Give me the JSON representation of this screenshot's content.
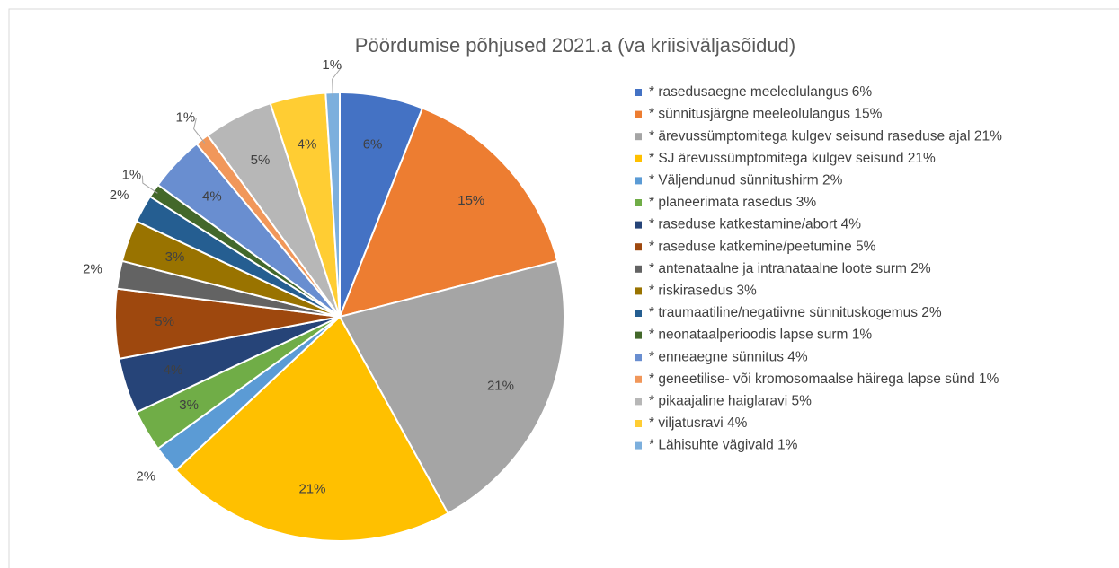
{
  "chart_data": {
    "type": "pie",
    "title": "Pöördumise põhjused 2021.a (va kriisiväljasõidud)",
    "categories": [
      "* rasedusaegne meeleolulangus 6%",
      "* sünnitusjärgne meeleolulangus 15%",
      "* ärevussümptomitega kulgev seisund raseduse ajal 21%",
      "* SJ ärevussümptomitega kulgev seisund 21%",
      "* Väljendunud sünnitushirm 2%",
      "* planeerimata rasedus 3%",
      "* raseduse katkestamine/abort 4%",
      "* raseduse katkemine/peetumine 5%",
      "* antenataalne ja intranataalne loote surm 2%",
      "* riskirasedus 3%",
      "* traumaatiline/negatiivne sünnituskogemus 2%",
      "* neonataalperioodis lapse surm 1%",
      "* enneaegne sünnitus 4%",
      "* geneetilise- või kromosomaalse häirega lapse sünd 1%",
      "* pikaajaline haiglaravi 5%",
      "* viljatusravi 4%",
      "* Lähisuhte vägivald 1%"
    ],
    "values": [
      6,
      15,
      21,
      21,
      2,
      3,
      4,
      5,
      2,
      3,
      2,
      1,
      4,
      1,
      5,
      4,
      1
    ],
    "value_labels": [
      "6%",
      "15%",
      "21%",
      "21%",
      "2%",
      "3%",
      "4%",
      "5%",
      "2%",
      "3%",
      "2%",
      "1%",
      "4%",
      "1%",
      "5%",
      "4%",
      "1%"
    ],
    "colors": [
      "#4472c4",
      "#ed7d31",
      "#a5a5a5",
      "#ffc000",
      "#5b9bd5",
      "#70ad47",
      "#264478",
      "#9e480e",
      "#636363",
      "#997300",
      "#255e91",
      "#43682b",
      "#698ed0",
      "#f1975a",
      "#b7b7b7",
      "#ffcd33",
      "#7cafdd"
    ]
  }
}
